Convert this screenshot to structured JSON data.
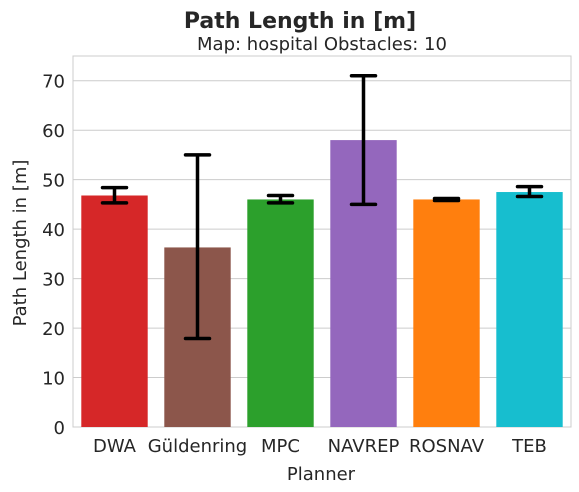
{
  "chart_data": {
    "type": "bar",
    "title": "Path Length in [m]",
    "subtitle": "Map: hospital Obstacles: 10",
    "xlabel": "Planner",
    "ylabel": "Path Length in [m]",
    "ylim": [
      0,
      75
    ],
    "yticks": [
      0,
      10,
      20,
      30,
      40,
      50,
      60,
      70
    ],
    "grid": "horizontal",
    "categories": [
      "DWA",
      "Güldenring",
      "MPC",
      "NAVREP",
      "ROSNAV",
      "TEB"
    ],
    "values": [
      46.8,
      36.3,
      46.0,
      58.0,
      46.0,
      47.5
    ],
    "error_low": [
      45.3,
      17.9,
      45.3,
      45.0,
      45.8,
      46.6
    ],
    "error_high": [
      48.4,
      55.0,
      46.8,
      71.0,
      46.2,
      48.6
    ],
    "colors": [
      "#d62728",
      "#8c564b",
      "#2ca02c",
      "#9467bd",
      "#ff7f0e",
      "#17becf"
    ]
  }
}
